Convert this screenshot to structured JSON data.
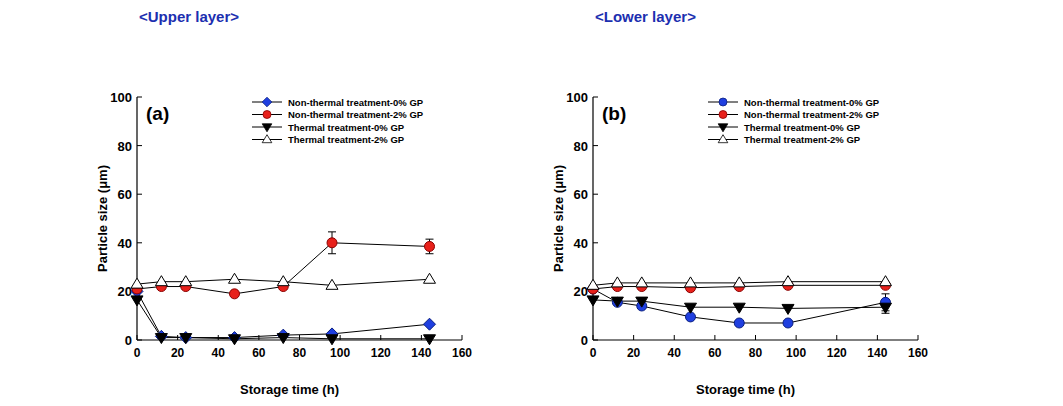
{
  "chart_data": [
    {
      "type": "line",
      "title": "<Upper layer>",
      "annotation": "(a)",
      "x_label": "Storage time (h)",
      "y_label": "Particle size (μm)",
      "x": [
        0,
        12,
        24,
        48,
        72,
        96,
        144
      ],
      "xlim": [
        0,
        160
      ],
      "xticks": [
        0,
        20,
        40,
        60,
        80,
        100,
        120,
        140,
        160
      ],
      "ylim": [
        0,
        100
      ],
      "yticks": [
        0,
        20,
        40,
        60,
        80,
        100
      ],
      "grid": false,
      "legend": "upper right",
      "series": [
        {
          "name": "Non-thermal treatment-0% GP",
          "color": "#1f3fe0",
          "marker": "diamond",
          "line_style": "solid",
          "values": [
            20,
            1.5,
            1,
            1,
            2,
            2.5,
            6.5
          ]
        },
        {
          "name": "Non-thermal treatment-2% GP",
          "color": "#e8211b",
          "marker": "circle",
          "line_style": "solid",
          "values": [
            21,
            22,
            22,
            19,
            22,
            40,
            38.5
          ],
          "errors": [
            null,
            null,
            null,
            null,
            null,
            4.5,
            3
          ]
        },
        {
          "name": "Thermal treatment-0% GP",
          "color": "#000000",
          "marker": "triangle-down",
          "line_style": "solid",
          "values": [
            16.5,
            1,
            1,
            0.5,
            1,
            0.5,
            0.5
          ]
        },
        {
          "name": "Thermal treatment-2% GP",
          "color": "#ffffff",
          "marker": "triangle-up",
          "line_style": "solid",
          "values": [
            23,
            24,
            24,
            25,
            24,
            22.5,
            25
          ]
        }
      ]
    },
    {
      "type": "line",
      "title": "<Lower layer>",
      "annotation": "(b)",
      "x_label": "Storage time (h)",
      "y_label": "Particle size (μm)",
      "x": [
        0,
        12,
        24,
        48,
        72,
        96,
        144
      ],
      "xlim": [
        0,
        160
      ],
      "xticks": [
        0,
        20,
        40,
        60,
        80,
        100,
        120,
        140,
        160
      ],
      "ylim": [
        0,
        100
      ],
      "yticks": [
        0,
        20,
        40,
        60,
        80,
        100
      ],
      "grid": false,
      "legend": "upper right",
      "series": [
        {
          "name": "Non-thermal treatment-0% GP",
          "color": "#1f3fe0",
          "marker": "circle",
          "line_style": "solid",
          "values": [
            21,
            15.5,
            14,
            9.5,
            7,
            7,
            15.5
          ],
          "errors": [
            null,
            null,
            null,
            null,
            null,
            null,
            3.5
          ]
        },
        {
          "name": "Non-thermal treatment-2% GP",
          "color": "#e8211b",
          "marker": "circle",
          "line_style": "solid",
          "values": [
            21,
            22,
            22,
            21.5,
            22,
            22.5,
            22.5
          ]
        },
        {
          "name": "Thermal treatment-0% GP",
          "color": "#000000",
          "marker": "triangle-down",
          "line_style": "solid",
          "values": [
            16.5,
            16,
            16,
            13.5,
            13.5,
            13,
            13.5
          ],
          "errors": [
            null,
            null,
            null,
            null,
            null,
            null,
            2.5
          ]
        },
        {
          "name": "Thermal treatment-2% GP",
          "color": "#ffffff",
          "marker": "triangle-up",
          "line_style": "solid",
          "values": [
            22.5,
            23.5,
            23.5,
            23.5,
            23.5,
            24,
            24
          ]
        }
      ]
    }
  ]
}
